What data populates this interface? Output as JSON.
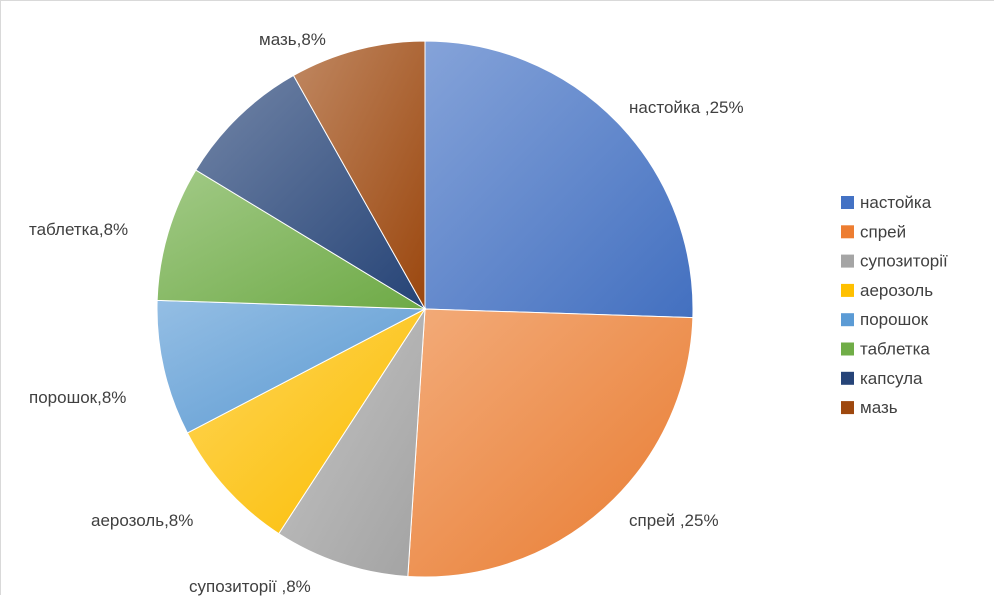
{
  "chart_data": {
    "type": "pie",
    "title": "",
    "slices": [
      {
        "name": "настойка",
        "value": 25,
        "label": "настойка ,25%",
        "color": "#4472C4"
      },
      {
        "name": "спрей",
        "value": 25,
        "label": "спрей ,25%",
        "color": "#ED7D31"
      },
      {
        "name": "супозиторії",
        "value": 8,
        "label": "супозиторії ,8%",
        "color": "#A5A5A5"
      },
      {
        "name": "аерозоль",
        "value": 8,
        "label": "аерозоль,8%",
        "color": "#FFC000"
      },
      {
        "name": "порошок",
        "value": 8,
        "label": "порошок,8%",
        "color": "#5B9BD5"
      },
      {
        "name": "таблетка",
        "value": 8,
        "label": "таблетка,8%",
        "color": "#70AD47"
      },
      {
        "name": "капсула",
        "value": 8,
        "label": "",
        "color": "#264478"
      },
      {
        "name": "мазь",
        "value": 8,
        "label": "мазь,8%",
        "color": "#9E480E"
      }
    ],
    "legend_position": "right"
  }
}
